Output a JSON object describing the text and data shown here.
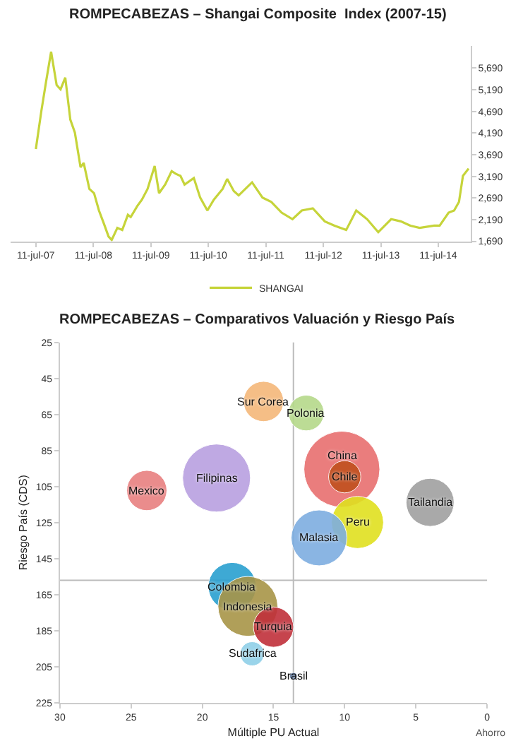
{
  "chart_data": [
    {
      "type": "line",
      "title": "ROMPECABEZAS – Shangai Composite  Index (2007-15)",
      "legend": "bottom",
      "grid": false,
      "marker": "none",
      "line_style": "solid",
      "xlim": [
        "2007-02-01",
        "2015-02-01"
      ],
      "xticks": [
        {
          "value": "2007-07-11",
          "label": "11-jul-07"
        },
        {
          "value": "2008-07-11",
          "label": "11-jul-08"
        },
        {
          "value": "2009-07-11",
          "label": "11-jul-09"
        },
        {
          "value": "2010-07-11",
          "label": "11-jul-10"
        },
        {
          "value": "2011-07-11",
          "label": "11-jul-11"
        },
        {
          "value": "2012-07-11",
          "label": "11-jul-12"
        },
        {
          "value": "2013-07-11",
          "label": "11-jul-13"
        },
        {
          "value": "2014-07-11",
          "label": "11-jul-14"
        }
      ],
      "ylim": [
        1690,
        6200
      ],
      "yticks": [
        {
          "value": 1690,
          "label": "1,690"
        },
        {
          "value": 2190,
          "label": "2,190"
        },
        {
          "value": 2690,
          "label": "2,690"
        },
        {
          "value": 3190,
          "label": "3,190"
        },
        {
          "value": 3690,
          "label": "3,690"
        },
        {
          "value": 4190,
          "label": "4,190"
        },
        {
          "value": 4690,
          "label": "4,690"
        },
        {
          "value": 5190,
          "label": "5,190"
        },
        {
          "value": 5690,
          "label": "5,690"
        }
      ],
      "x": [
        "2007-07-11",
        "2007-08-15",
        "2007-09-15",
        "2007-10-16",
        "2007-11-20",
        "2007-12-15",
        "2008-01-14",
        "2008-02-15",
        "2008-03-15",
        "2008-04-20",
        "2008-05-10",
        "2008-06-15",
        "2008-07-15",
        "2008-08-15",
        "2008-09-15",
        "2008-10-15",
        "2008-11-04",
        "2008-12-10",
        "2009-01-10",
        "2009-02-15",
        "2009-03-05",
        "2009-04-15",
        "2009-05-15",
        "2009-06-20",
        "2009-08-04",
        "2009-09-01",
        "2009-10-10",
        "2009-11-20",
        "2009-12-15",
        "2010-01-15",
        "2010-02-10",
        "2010-04-10",
        "2010-05-20",
        "2010-07-05",
        "2010-08-15",
        "2010-10-10",
        "2010-11-08",
        "2010-12-20",
        "2011-01-20",
        "2011-04-15",
        "2011-06-20",
        "2011-08-15",
        "2011-10-20",
        "2011-12-28",
        "2012-02-25",
        "2012-05-05",
        "2012-07-20",
        "2012-09-20",
        "2012-12-03",
        "2013-02-05",
        "2013-04-15",
        "2013-06-25",
        "2013-09-15",
        "2013-11-15",
        "2014-01-15",
        "2014-03-15",
        "2014-06-15",
        "2014-07-20",
        "2014-09-15",
        "2014-10-20",
        "2014-11-20",
        "2014-12-15",
        "2015-01-20"
      ],
      "series": [
        {
          "name": "SHANGAI",
          "color": "#c6d43a",
          "values": [
            3820,
            4700,
            5400,
            6070,
            5300,
            5200,
            5470,
            4500,
            4200,
            3400,
            3500,
            2900,
            2800,
            2400,
            2100,
            1800,
            1720,
            2000,
            1950,
            2300,
            2250,
            2500,
            2650,
            2900,
            3430,
            2800,
            3000,
            3310,
            3250,
            3200,
            3000,
            3150,
            2700,
            2400,
            2650,
            2900,
            3130,
            2850,
            2750,
            3050,
            2700,
            2600,
            2350,
            2200,
            2400,
            2450,
            2150,
            2050,
            1950,
            2400,
            2200,
            1900,
            2200,
            2150,
            2050,
            2000,
            2050,
            2050,
            2350,
            2400,
            2600,
            3200,
            3370
          ]
        }
      ]
    },
    {
      "type": "bubble",
      "title": "ROMPECABEZAS – Comparativos Valuación y Riesgo País",
      "xlabel": "Múltiple PU Actual",
      "ylabel": "Riesgo País (CDS)",
      "legend": false,
      "grid": false,
      "xlim": [
        30,
        0
      ],
      "xticks": [
        30,
        25,
        20,
        15,
        10,
        5,
        0
      ],
      "ylim": [
        225,
        25
      ],
      "yticks": [
        25,
        45,
        65,
        85,
        105,
        125,
        145,
        165,
        185,
        205,
        225
      ],
      "annotations": [
        "Ahorro"
      ],
      "ref_lines": [
        {
          "axis": "x",
          "value": 13.6,
          "color": "#bbbbbb"
        },
        {
          "axis": "y",
          "value": 157,
          "color": "#bbbbbb"
        }
      ],
      "series": [
        {
          "name": "Sur Corea",
          "color": "#f5b87a",
          "x": [
            15.7
          ],
          "values": [
            57.8
          ],
          "sizes": [
            0.28
          ]
        },
        {
          "name": "Polonia",
          "color": "#b5d98a",
          "x": [
            12.7
          ],
          "values": [
            64.2
          ],
          "sizes": [
            0.22
          ]
        },
        {
          "name": "China",
          "color": "#e87070",
          "x": [
            10.2
          ],
          "values": [
            95.4
          ],
          "sizes": [
            1
          ]
        },
        {
          "name": "Chile",
          "color": "#c0501e",
          "x": [
            10.0
          ],
          "values": [
            99.6
          ],
          "sizes": [
            0.18
          ]
        },
        {
          "name": "Filipinas",
          "color": "#b9a0e0",
          "x": [
            19.0
          ],
          "values": [
            100.3
          ],
          "sizes": [
            0.8
          ]
        },
        {
          "name": "Mexico",
          "color": "#e88080",
          "x": [
            23.9
          ],
          "values": [
            107.2
          ],
          "sizes": [
            0.28
          ]
        },
        {
          "name": "Tailandia",
          "color": "#a0a0a0",
          "x": [
            4.0
          ],
          "values": [
            113.8
          ],
          "sizes": [
            0.4
          ]
        },
        {
          "name": "Peru",
          "color": "#e0e020",
          "x": [
            9.1
          ],
          "values": [
            124.9
          ],
          "sizes": [
            0.47
          ]
        },
        {
          "name": "Malasia",
          "color": "#7eaee0",
          "x": [
            11.8
          ],
          "values": [
            133.5
          ],
          "sizes": [
            0.54
          ]
        },
        {
          "name": "Colombia",
          "color": "#2aa0d0",
          "x": [
            17.9
          ],
          "values": [
            160.5
          ],
          "sizes": [
            0.4
          ]
        },
        {
          "name": "Indonesia",
          "color": "#a89548",
          "x": [
            16.8
          ],
          "values": [
            171.5
          ],
          "sizes": [
            0.62
          ]
        },
        {
          "name": "Turquia",
          "color": "#c0303a",
          "x": [
            15.0
          ],
          "values": [
            183.0
          ],
          "sizes": [
            0.28
          ]
        },
        {
          "name": "Sudafrica",
          "color": "#90d0e8",
          "x": [
            16.5
          ],
          "values": [
            197.8
          ],
          "sizes": [
            0.1
          ]
        },
        {
          "name": "Brasil",
          "color": "#305080",
          "x": [
            13.6
          ],
          "values": [
            210.3
          ],
          "sizes": [
            0.01
          ]
        }
      ]
    }
  ]
}
